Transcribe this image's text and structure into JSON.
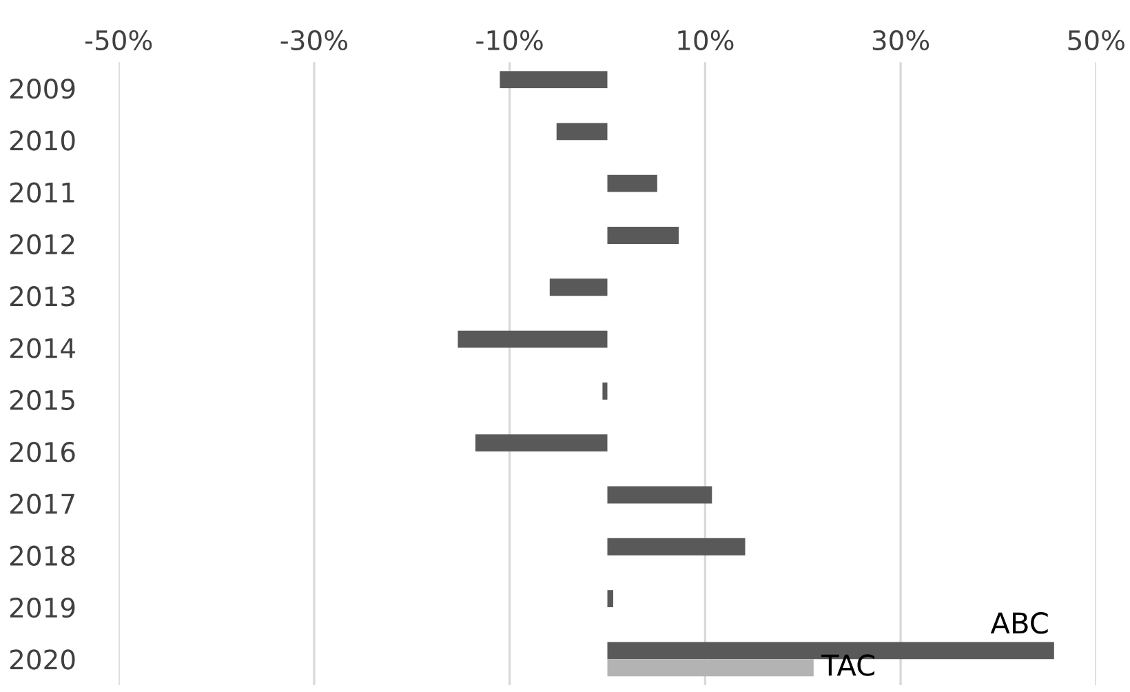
{
  "chart_data": {
    "type": "bar",
    "orientation": "horizontal",
    "categories": [
      "2009",
      "2010",
      "2011",
      "2012",
      "2013",
      "2014",
      "2015",
      "2016",
      "2017",
      "2018",
      "2019",
      "2020"
    ],
    "series": [
      {
        "name": "ABC",
        "color": "#595959",
        "values": [
          -11,
          -5.2,
          5.1,
          7.3,
          -5.9,
          -15.3,
          -0.5,
          -13.5,
          10.7,
          14.1,
          0.6,
          45.7
        ]
      },
      {
        "name": "TAC",
        "color": "#b3b3b3",
        "values": [
          null,
          null,
          null,
          null,
          null,
          null,
          null,
          null,
          null,
          null,
          null,
          21.1
        ]
      }
    ],
    "xlim": [
      -50,
      50
    ],
    "xticks": [
      {
        "value": -50,
        "label": "-50%"
      },
      {
        "value": -30,
        "label": "-30%"
      },
      {
        "value": -10,
        "label": "-10%"
      },
      {
        "value": 10,
        "label": "10%"
      },
      {
        "value": 30,
        "label": "30%"
      },
      {
        "value": 50,
        "label": "50%"
      }
    ],
    "grid": "x",
    "legend": false
  }
}
